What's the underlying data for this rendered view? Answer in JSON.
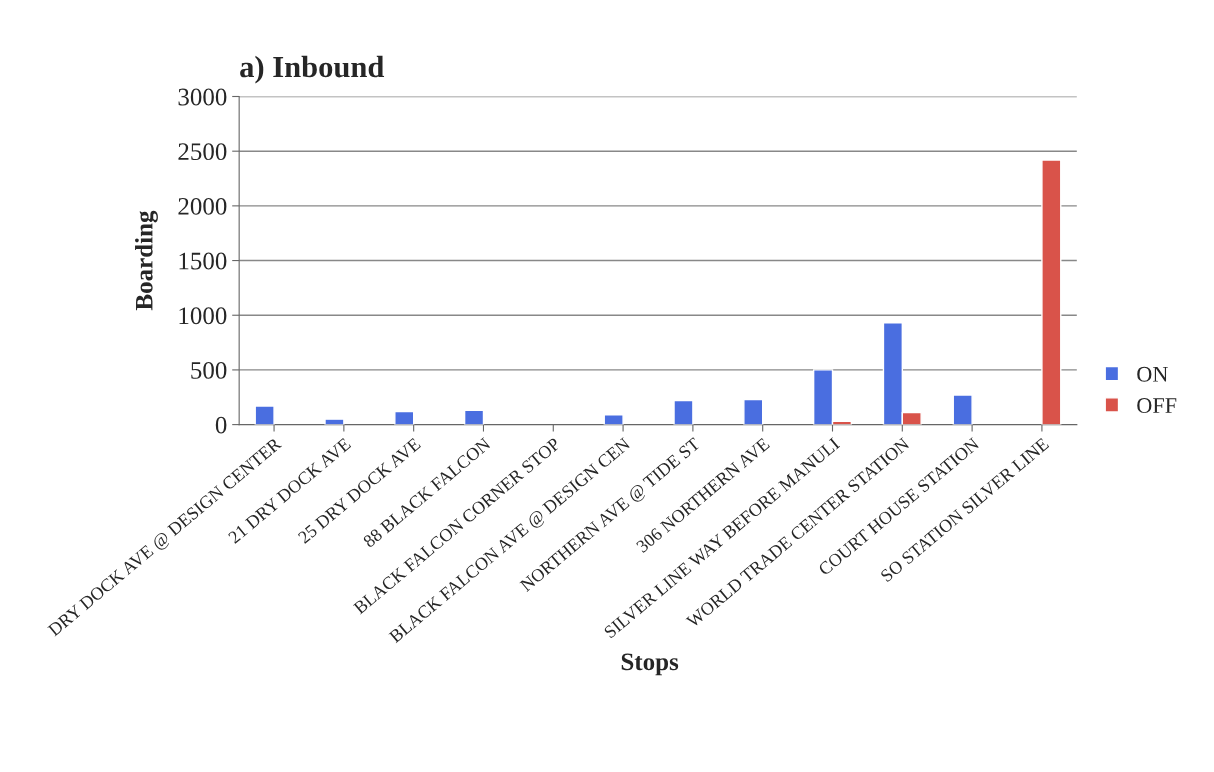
{
  "chart_data": {
    "type": "bar",
    "title": "a) Inbound",
    "xlabel": "Stops",
    "ylabel": "Boarding",
    "categories": [
      "DRY DOCK AVE @ DESIGN CENTER",
      "21 DRY DOCK AVE",
      "25 DRY DOCK AVE",
      "88 BLACK FALCON",
      "BLACK FALCON CORNER STOP",
      "BLACK FALCON AVE @ DESIGN CEN",
      "NORTHERN AVE @ TIDE ST",
      "306 NORTHERN AVE",
      "SILVER LINE WAY BEFORE MANULI",
      "WORLD TRADE CENTER STATION",
      "COURT HOUSE STATION",
      "SO STATION SILVER LINE"
    ],
    "series": [
      {
        "name": "ON",
        "color": "#4a6ee0",
        "values": [
          170,
          50,
          120,
          130,
          null,
          90,
          220,
          230,
          500,
          930,
          270,
          null
        ]
      },
      {
        "name": "OFF",
        "color": "#d9534a",
        "values": [
          null,
          null,
          null,
          null,
          null,
          null,
          null,
          null,
          30,
          110,
          null,
          2420
        ]
      }
    ],
    "ylim": [
      0,
      3000
    ],
    "yticks": [
      0,
      500,
      1000,
      1500,
      2000,
      2500,
      3000
    ],
    "grid": "y",
    "legend": "right"
  }
}
